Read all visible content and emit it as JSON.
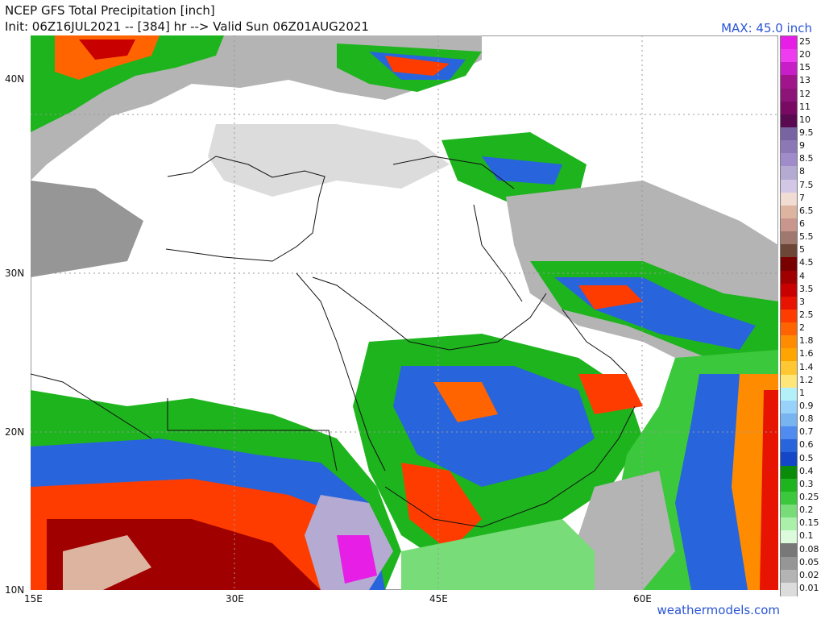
{
  "header": {
    "title": "NCEP GFS Total Precipitation [inch]",
    "subtitle": "Init: 06Z16JUL2021 -- [384] hr --> Valid Sun 06Z01AUG2021",
    "max_label": "MAX: 45.0 inch"
  },
  "map": {
    "lat_labels": [
      "40N",
      "30N",
      "20N",
      "10N"
    ],
    "lon_labels": [
      "15E",
      "30E",
      "45E",
      "60E"
    ]
  },
  "colorbar": {
    "levels": [
      {
        "label": "25",
        "color": "#e61ee6"
      },
      {
        "label": "20",
        "color": "#f03cf0"
      },
      {
        "label": "15",
        "color": "#c81ec8"
      },
      {
        "label": "13",
        "color": "#a0148c"
      },
      {
        "label": "12",
        "color": "#8c1478"
      },
      {
        "label": "11",
        "color": "#780a64"
      },
      {
        "label": "10",
        "color": "#5a0a50"
      },
      {
        "label": "9.5",
        "color": "#7864a0"
      },
      {
        "label": "9",
        "color": "#8c78b4"
      },
      {
        "label": "8.5",
        "color": "#a08cc8"
      },
      {
        "label": "8",
        "color": "#b4aad2"
      },
      {
        "label": "7.5",
        "color": "#d2c8e6"
      },
      {
        "label": "7",
        "color": "#f0dcd2"
      },
      {
        "label": "6.5",
        "color": "#dcb4a0"
      },
      {
        "label": "6",
        "color": "#c8968c"
      },
      {
        "label": "5.5",
        "color": "#a0786e"
      },
      {
        "label": "5",
        "color": "#6e4637"
      },
      {
        "label": "4.5",
        "color": "#780000"
      },
      {
        "label": "4",
        "color": "#a00000"
      },
      {
        "label": "3.5",
        "color": "#c80000"
      },
      {
        "label": "3",
        "color": "#e61400"
      },
      {
        "label": "2.5",
        "color": "#ff3c00"
      },
      {
        "label": "2",
        "color": "#ff6400"
      },
      {
        "label": "1.8",
        "color": "#ff8c00"
      },
      {
        "label": "1.6",
        "color": "#ffa500"
      },
      {
        "label": "1.4",
        "color": "#ffc832"
      },
      {
        "label": "1.2",
        "color": "#ffe678"
      },
      {
        "label": "1",
        "color": "#b4f0fa"
      },
      {
        "label": "0.9",
        "color": "#96d2fa"
      },
      {
        "label": "0.8",
        "color": "#78b4f0"
      },
      {
        "label": "0.7",
        "color": "#508cf0"
      },
      {
        "label": "0.6",
        "color": "#2864dc"
      },
      {
        "label": "0.5",
        "color": "#1446c8"
      },
      {
        "label": "0.4",
        "color": "#0a8c0a"
      },
      {
        "label": "0.3",
        "color": "#1eb41e"
      },
      {
        "label": "0.25",
        "color": "#3cc83c"
      },
      {
        "label": "0.2",
        "color": "#78dc78"
      },
      {
        "label": "0.15",
        "color": "#aaf0aa"
      },
      {
        "label": "0.1",
        "color": "#dcfadc"
      },
      {
        "label": "0.08",
        "color": "#787878"
      },
      {
        "label": "0.05",
        "color": "#969696"
      },
      {
        "label": "0.02",
        "color": "#b4b4b4"
      },
      {
        "label": "0.01",
        "color": "#dcdcdc"
      }
    ]
  },
  "footer": {
    "credit": "weathermodels.com"
  }
}
